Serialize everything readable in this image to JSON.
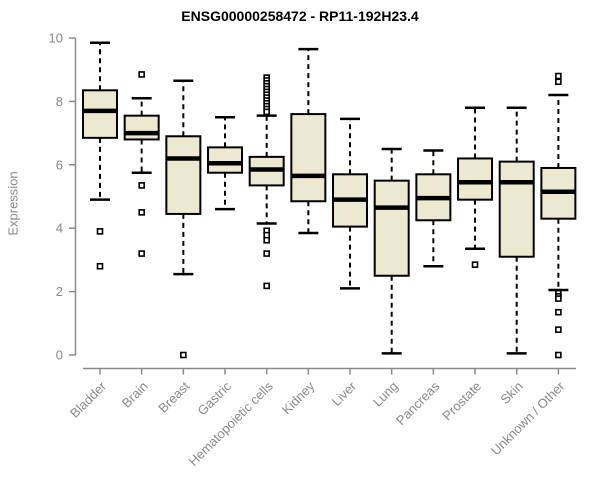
{
  "title": "ENSG00000258472 - RP11-192H23.4",
  "ylabel": "Expression",
  "colors": {
    "box_fill": "#EDE8D0",
    "box_stroke": "#000000",
    "median": "#000000",
    "whisker": "#000000",
    "outlier_stroke": "#000000",
    "outlier_fill": "#ffffff",
    "axis": "#8a8a8a",
    "tick_label": "#8a8a8a",
    "title": "#000000"
  },
  "chart_data": {
    "type": "boxplot",
    "title": "ENSG00000258472 - RP11-192H23.4",
    "xlabel": "",
    "ylabel": "Expression",
    "ylim": [
      0,
      10
    ],
    "yticks": [
      0,
      2,
      4,
      6,
      8,
      10
    ],
    "grid": false,
    "legend": "none",
    "categories": [
      "Bladder",
      "Brain",
      "Breast",
      "Gastric",
      "Hematopoietic cells",
      "Kidney",
      "Liver",
      "Lung",
      "Pancreas",
      "Prostate",
      "Skin",
      "Unknown / Other"
    ],
    "series": [
      {
        "name": "Bladder",
        "low": 4.9,
        "q1": 6.85,
        "median": 7.7,
        "q3": 8.35,
        "high": 9.85,
        "outliers": [
          3.9,
          2.8
        ]
      },
      {
        "name": "Brain",
        "low": 5.75,
        "q1": 6.8,
        "median": 7.0,
        "q3": 7.55,
        "high": 8.1,
        "outliers": [
          8.85,
          5.35,
          4.5,
          3.2
        ]
      },
      {
        "name": "Breast",
        "low": 2.55,
        "q1": 4.45,
        "median": 6.2,
        "q3": 6.9,
        "high": 8.65,
        "outliers": [
          0.0
        ]
      },
      {
        "name": "Gastric",
        "low": 4.6,
        "q1": 5.75,
        "median": 6.05,
        "q3": 6.55,
        "high": 7.5,
        "outliers": []
      },
      {
        "name": "Hematopoietic cells",
        "low": 4.15,
        "q1": 5.35,
        "median": 5.85,
        "q3": 6.25,
        "high": 7.55,
        "outliers": [
          8.75,
          8.66,
          8.57,
          8.48,
          8.39,
          8.3,
          8.21,
          8.12,
          8.03,
          7.94,
          7.85,
          7.76,
          7.67,
          3.92,
          3.78,
          3.62,
          3.2,
          2.18
        ]
      },
      {
        "name": "Kidney",
        "low": 3.85,
        "q1": 4.85,
        "median": 5.65,
        "q3": 7.6,
        "high": 9.65,
        "outliers": []
      },
      {
        "name": "Liver",
        "low": 2.1,
        "q1": 4.05,
        "median": 4.9,
        "q3": 5.7,
        "high": 7.45,
        "outliers": []
      },
      {
        "name": "Lung",
        "low": 0.05,
        "q1": 2.5,
        "median": 4.65,
        "q3": 5.5,
        "high": 6.5,
        "outliers": []
      },
      {
        "name": "Pancreas",
        "low": 2.8,
        "q1": 4.25,
        "median": 4.95,
        "q3": 5.7,
        "high": 6.45,
        "outliers": []
      },
      {
        "name": "Prostate",
        "low": 3.35,
        "q1": 4.9,
        "median": 5.45,
        "q3": 6.2,
        "high": 7.8,
        "outliers": [
          2.85
        ]
      },
      {
        "name": "Skin",
        "low": 0.05,
        "q1": 3.1,
        "median": 5.45,
        "q3": 6.1,
        "high": 7.8,
        "outliers": []
      },
      {
        "name": "Unknown / Other",
        "low": 2.05,
        "q1": 4.3,
        "median": 5.15,
        "q3": 5.9,
        "high": 8.2,
        "outliers": [
          8.8,
          8.62,
          1.95,
          1.85,
          1.78,
          1.35,
          0.8,
          0.0
        ]
      }
    ]
  }
}
